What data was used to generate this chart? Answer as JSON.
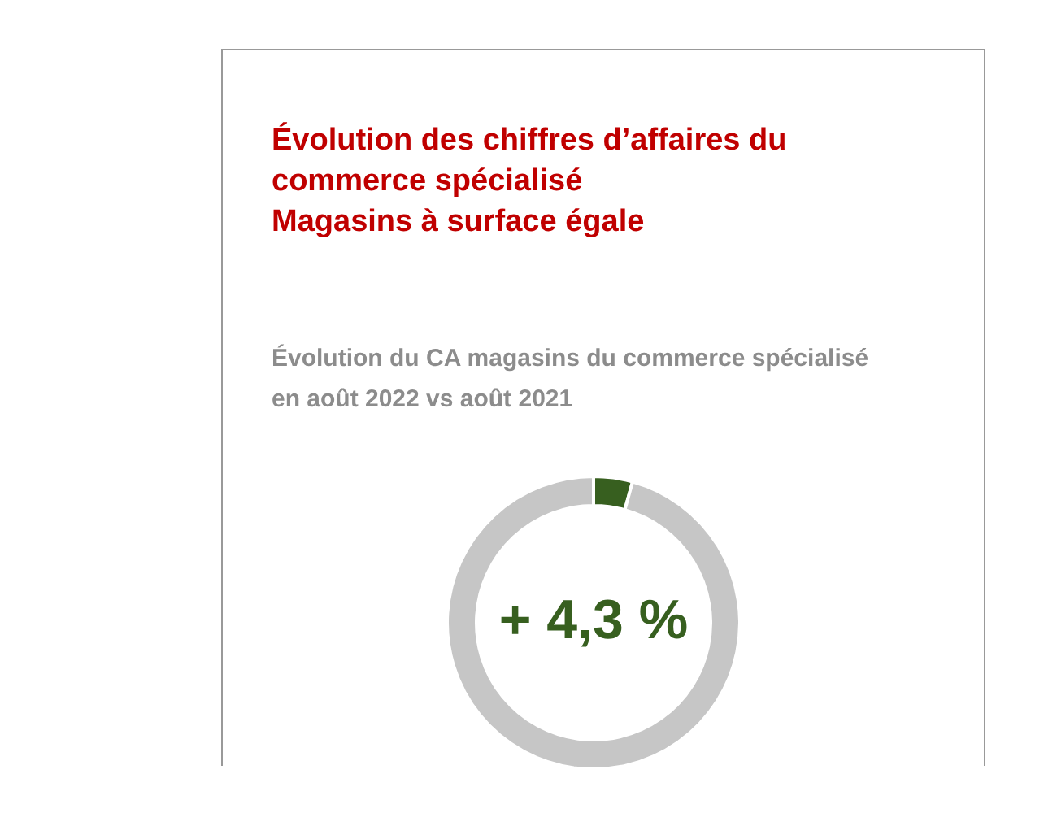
{
  "chart_data": {
    "type": "donut",
    "title": "Évolution des chiffres d’affaires du\ncommerce spécialisé\nMagasins à surface égale",
    "subtitle": "Évolution du CA magasins du commerce spécialisé\nen août 2022 vs août 2021",
    "categories": [
      null,
      null
    ],
    "values": [
      4.3,
      95.7
    ],
    "colors": [
      "#375f1f",
      "#c6c6c6"
    ],
    "annotations": [
      "+ 4,3 %"
    ],
    "legend": false
  }
}
